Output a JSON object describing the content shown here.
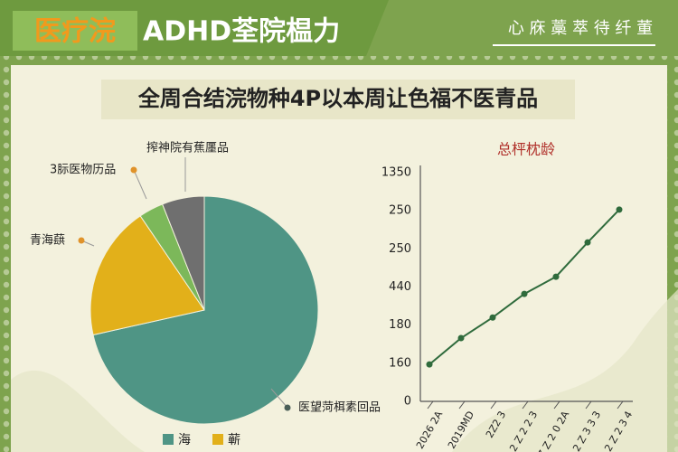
{
  "header": {
    "title_left": "医疗浣",
    "title_right": "ADHD荃院榅力",
    "tagline": "心 庥 藁 萃 待 纤 董",
    "subtitle": "全周合结浣物种4P以本周让色福不医青品"
  },
  "chart_data": [
    {
      "type": "pie",
      "categories": [
        "医望菏栮素回品",
        "青海蕻",
        "3䏡医物历品",
        "搾神院有蕉㕓品"
      ],
      "values": [
        71.5,
        19,
        3.5,
        6
      ],
      "colors": [
        "#4f9585",
        "#e2b01a",
        "#7cb85a",
        "#6f6f6f"
      ],
      "legend": [
        {
          "label": "海",
          "color": "#4f9585"
        },
        {
          "label": "蕲",
          "color": "#e2b01a"
        }
      ]
    },
    {
      "type": "line",
      "title": "总枰枕龄",
      "x": [
        "2026 2A",
        "2019MD",
        "2Z2 3",
        "2 Z 2 2 3",
        "Z Z 2 0 2A",
        "2 Z 3 3 3",
        "2 Z 2 3 4"
      ],
      "values": [
        0.97,
        1.66,
        2.2,
        2.82,
        3.27,
        4.17,
        5.03
      ],
      "y_labels": [
        "0",
        "160",
        "180",
        "440",
        "250",
        "250",
        "1350"
      ],
      "ylim": [
        0,
        6
      ],
      "color": "#2f6b3c"
    }
  ]
}
